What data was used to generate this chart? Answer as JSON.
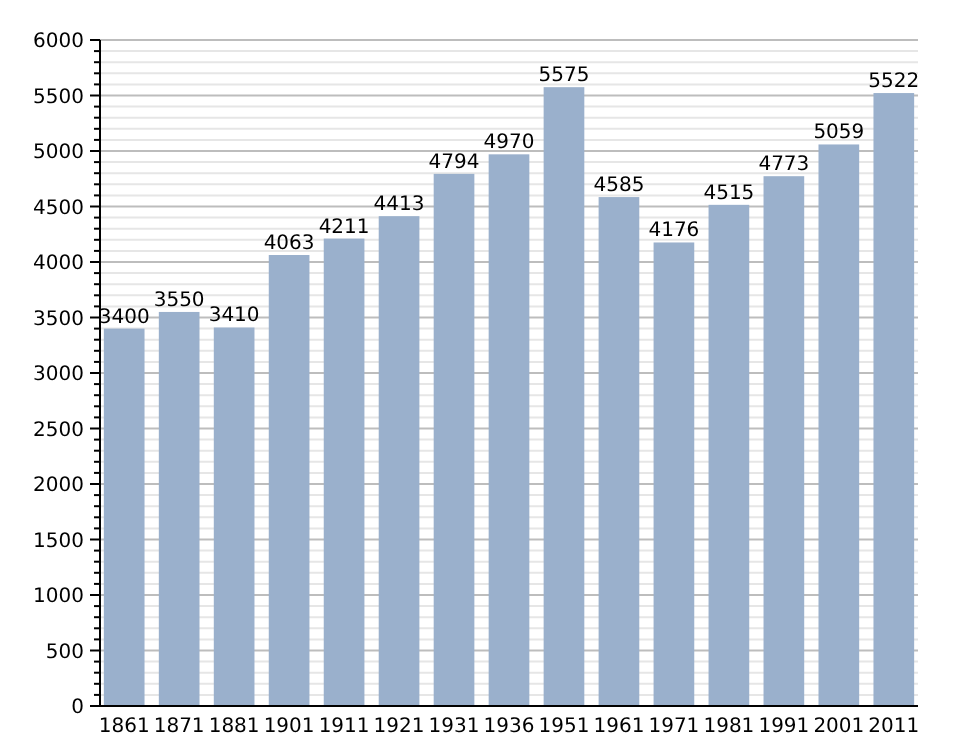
{
  "chart_data": {
    "type": "bar",
    "categories": [
      "1861",
      "1871",
      "1881",
      "1901",
      "1911",
      "1921",
      "1931",
      "1936",
      "1951",
      "1961",
      "1971",
      "1981",
      "1991",
      "2001",
      "2011"
    ],
    "values": [
      3400,
      3550,
      3410,
      4063,
      4211,
      4413,
      4794,
      4970,
      5575,
      4585,
      4176,
      4515,
      4773,
      5059,
      5522
    ],
    "color": "#9ab0cc",
    "data_labels": true,
    "grid": "y",
    "ylim": [
      0,
      6000
    ],
    "yticks": [
      0,
      {
        "value": 100,
        "label": null
      },
      {
        "value": 200,
        "label": null
      },
      {
        "value": 300,
        "label": null
      },
      {
        "value": 400,
        "label": null
      },
      500,
      {
        "value": 600,
        "label": null
      },
      {
        "value": 700,
        "label": null
      },
      {
        "value": 800,
        "label": null
      },
      {
        "value": 900,
        "label": null
      },
      1000,
      {
        "value": 1100,
        "label": null
      },
      {
        "value": 1200,
        "label": null
      },
      {
        "value": 1300,
        "label": null
      },
      {
        "value": 1400,
        "label": null
      },
      1500,
      {
        "value": 1600,
        "label": null
      },
      {
        "value": 1700,
        "label": null
      },
      {
        "value": 1800,
        "label": null
      },
      {
        "value": 1900,
        "label": null
      },
      2000,
      {
        "value": 2100,
        "label": null
      },
      {
        "value": 2200,
        "label": null
      },
      {
        "value": 2300,
        "label": null
      },
      {
        "value": 2400,
        "label": null
      },
      2500,
      {
        "value": 2600,
        "label": null
      },
      {
        "value": 2700,
        "label": null
      },
      {
        "value": 2800,
        "label": null
      },
      {
        "value": 2900,
        "label": null
      },
      3000,
      {
        "value": 3100,
        "label": null
      },
      {
        "value": 3200,
        "label": null
      },
      {
        "value": 3300,
        "label": null
      },
      {
        "value": 3400,
        "label": null
      },
      3500,
      {
        "value": 3600,
        "label": null
      },
      {
        "value": 3700,
        "label": null
      },
      {
        "value": 3800,
        "label": null
      },
      {
        "value": 3900,
        "label": null
      },
      4000,
      {
        "value": 4100,
        "label": null
      },
      {
        "value": 4200,
        "label": null
      },
      {
        "value": 4300,
        "label": null
      },
      {
        "value": 4400,
        "label": null
      },
      4500,
      {
        "value": 4600,
        "label": null
      },
      {
        "value": 4700,
        "label": null
      },
      {
        "value": 4800,
        "label": null
      },
      {
        "value": 4900,
        "label": null
      },
      5000,
      {
        "value": 5100,
        "label": null
      },
      {
        "value": 5200,
        "label": null
      },
      {
        "value": 5300,
        "label": null
      },
      {
        "value": 5400,
        "label": null
      },
      5500,
      {
        "value": 5600,
        "label": null
      },
      {
        "value": 5700,
        "label": null
      },
      {
        "value": 5800,
        "label": null
      },
      {
        "value": 5900,
        "label": null
      },
      6000
    ]
  }
}
